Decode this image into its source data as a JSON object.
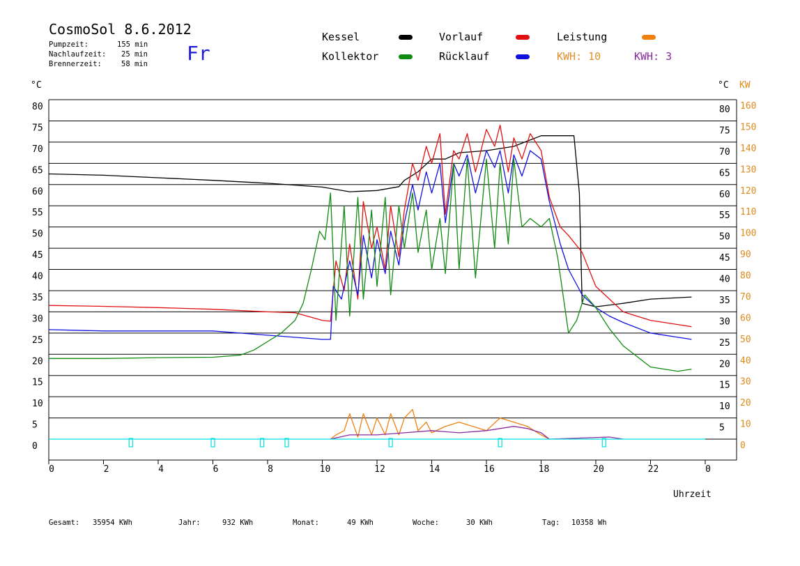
{
  "header": {
    "title": "CosmoSol 8.6.2012",
    "day": "Fr",
    "stats": [
      {
        "label": "Pumpzeit:",
        "value": "155 min"
      },
      {
        "label": "Nachlaufzeit:",
        "value": "25 min"
      },
      {
        "label": "Brennerzeit:",
        "value": "58 min"
      }
    ]
  },
  "legend": {
    "kessel": {
      "label": "Kessel",
      "color": "#000000"
    },
    "vorlauf": {
      "label": "Vorlauf",
      "color": "#e01010"
    },
    "leistung": {
      "label": "Leistung",
      "color": "#f08010"
    },
    "kollektor": {
      "label": "Kollektor",
      "color": "#108a10"
    },
    "ruecklauf": {
      "label": "Rücklauf",
      "color": "#1010e0"
    },
    "kwh1": {
      "label": "KWH: 10",
      "color": "#e0902a"
    },
    "kwh2": {
      "label": "KWH: 3",
      "color": "#8a2aa0"
    }
  },
  "footer": {
    "gesamt": {
      "label": "Gesamt:",
      "value": "35954 KWh"
    },
    "jahr": {
      "label": "Jahr:",
      "value": "932 KWh"
    },
    "monat": {
      "label": "Monat:",
      "value": "49 KWh"
    },
    "woche": {
      "label": "Woche:",
      "value": "30 KWh"
    },
    "tag": {
      "label": "Tag:",
      "value": "10358 Wh"
    }
  },
  "chart_data": {
    "type": "line",
    "xlabel": "Uhrzeit",
    "ylabel_left": "°C",
    "ylabel_right_1": "°C",
    "ylabel_right_2": "KW",
    "xlim": [
      0,
      24
    ],
    "ylim": [
      0,
      80
    ],
    "x_ticks": [
      "0",
      "2",
      "4",
      "6",
      "8",
      "10",
      "12",
      "14",
      "16",
      "18",
      "20",
      "22",
      "0"
    ],
    "y_ticks": [
      "80",
      "75",
      "70",
      "65",
      "60",
      "55",
      "50",
      "45",
      "40",
      "35",
      "30",
      "25",
      "20",
      "15",
      "10",
      "5",
      "0"
    ],
    "y_ticks_right": [
      "80",
      "75",
      "70",
      "65",
      "60",
      "55",
      "50",
      "45",
      "40",
      "35",
      "30",
      "25",
      "20",
      "15",
      "10",
      "5"
    ],
    "y_ticks_kw": [
      "160",
      "150",
      "140",
      "130",
      "120",
      "110",
      "100",
      "90",
      "80",
      "70",
      "60",
      "50",
      "40",
      "30",
      "20",
      "10",
      "0"
    ],
    "grid": "horizontal",
    "series": [
      {
        "name": "Kessel",
        "color": "#000000",
        "points": [
          [
            0,
            62.5
          ],
          [
            2,
            62.2
          ],
          [
            4,
            61.6
          ],
          [
            6,
            61
          ],
          [
            8,
            60.3
          ],
          [
            10,
            59.4
          ],
          [
            11,
            58.3
          ],
          [
            12,
            58.6
          ],
          [
            12.8,
            59.5
          ],
          [
            13,
            61
          ],
          [
            13.5,
            63
          ],
          [
            14,
            66
          ],
          [
            14.5,
            66
          ],
          [
            15,
            67.5
          ],
          [
            16,
            68
          ],
          [
            17,
            69
          ],
          [
            17.8,
            71
          ],
          [
            18,
            71.5
          ],
          [
            19,
            71.5
          ],
          [
            19.2,
            71.5
          ],
          [
            19.4,
            58
          ],
          [
            19.5,
            32
          ],
          [
            20,
            31.2
          ],
          [
            21,
            32
          ],
          [
            22,
            33
          ],
          [
            23.5,
            33.5
          ]
        ]
      },
      {
        "name": "Vorlauf",
        "color": "#e01010",
        "points": [
          [
            0,
            31.5
          ],
          [
            2,
            31.3
          ],
          [
            4,
            31
          ],
          [
            6,
            30.6
          ],
          [
            8,
            30
          ],
          [
            9,
            29.8
          ],
          [
            10,
            28
          ],
          [
            10.3,
            27.8
          ],
          [
            10.5,
            42
          ],
          [
            10.8,
            35
          ],
          [
            11,
            46
          ],
          [
            11.3,
            33
          ],
          [
            11.5,
            56
          ],
          [
            11.8,
            45
          ],
          [
            12,
            50
          ],
          [
            12.3,
            40
          ],
          [
            12.5,
            55
          ],
          [
            12.8,
            43
          ],
          [
            13,
            54
          ],
          [
            13.3,
            65
          ],
          [
            13.5,
            61
          ],
          [
            13.8,
            69
          ],
          [
            14,
            65
          ],
          [
            14.3,
            72
          ],
          [
            14.5,
            53
          ],
          [
            14.8,
            68
          ],
          [
            15,
            66
          ],
          [
            15.3,
            72
          ],
          [
            15.6,
            63
          ],
          [
            16,
            73
          ],
          [
            16.3,
            69
          ],
          [
            16.5,
            74
          ],
          [
            16.8,
            63
          ],
          [
            17,
            71
          ],
          [
            17.3,
            66
          ],
          [
            17.6,
            72
          ],
          [
            18,
            68
          ],
          [
            18.3,
            57
          ],
          [
            18.7,
            50
          ],
          [
            19,
            48
          ],
          [
            19.5,
            44
          ],
          [
            20,
            36
          ],
          [
            20.5,
            33
          ],
          [
            21,
            30
          ],
          [
            22,
            28
          ],
          [
            23,
            27
          ],
          [
            23.5,
            26.5
          ]
        ]
      },
      {
        "name": "Rücklauf",
        "color": "#1010e0",
        "points": [
          [
            0,
            25.8
          ],
          [
            2,
            25.5
          ],
          [
            4,
            25.5
          ],
          [
            6,
            25.5
          ],
          [
            8,
            24.5
          ],
          [
            9,
            24
          ],
          [
            10,
            23.5
          ],
          [
            10.3,
            23.5
          ],
          [
            10.4,
            36
          ],
          [
            10.7,
            33
          ],
          [
            11,
            42
          ],
          [
            11.3,
            34
          ],
          [
            11.5,
            48
          ],
          [
            11.8,
            38
          ],
          [
            12,
            47
          ],
          [
            12.3,
            39
          ],
          [
            12.5,
            49
          ],
          [
            12.8,
            41
          ],
          [
            13,
            51
          ],
          [
            13.3,
            60
          ],
          [
            13.5,
            54
          ],
          [
            13.8,
            63
          ],
          [
            14,
            58
          ],
          [
            14.3,
            65
          ],
          [
            14.5,
            51
          ],
          [
            14.8,
            65
          ],
          [
            15,
            62
          ],
          [
            15.3,
            67
          ],
          [
            15.6,
            58
          ],
          [
            16,
            68
          ],
          [
            16.3,
            64
          ],
          [
            16.5,
            68
          ],
          [
            16.8,
            58
          ],
          [
            17,
            67
          ],
          [
            17.3,
            62
          ],
          [
            17.6,
            68
          ],
          [
            18,
            66
          ],
          [
            18.3,
            56
          ],
          [
            18.7,
            46
          ],
          [
            19,
            40
          ],
          [
            19.5,
            34
          ],
          [
            20,
            31
          ],
          [
            20.5,
            29
          ],
          [
            21,
            27.5
          ],
          [
            22,
            25
          ],
          [
            23,
            24
          ],
          [
            23.5,
            23.5
          ]
        ]
      },
      {
        "name": "Kollektor",
        "color": "#108a10",
        "points": [
          [
            0,
            19
          ],
          [
            2,
            19
          ],
          [
            4,
            19.2
          ],
          [
            6,
            19.3
          ],
          [
            7,
            19.8
          ],
          [
            7.5,
            21
          ],
          [
            8,
            23
          ],
          [
            8.5,
            25
          ],
          [
            9,
            28
          ],
          [
            9.3,
            32
          ],
          [
            9.6,
            40
          ],
          [
            9.9,
            49
          ],
          [
            10.1,
            47
          ],
          [
            10.3,
            58
          ],
          [
            10.5,
            28
          ],
          [
            10.8,
            55
          ],
          [
            11,
            29
          ],
          [
            11.3,
            57
          ],
          [
            11.5,
            33
          ],
          [
            11.8,
            54
          ],
          [
            12,
            36
          ],
          [
            12.3,
            57
          ],
          [
            12.5,
            34
          ],
          [
            12.8,
            55
          ],
          [
            13,
            45
          ],
          [
            13.3,
            58
          ],
          [
            13.5,
            44
          ],
          [
            13.8,
            54
          ],
          [
            14,
            40
          ],
          [
            14.3,
            52
          ],
          [
            14.5,
            39
          ],
          [
            14.8,
            65
          ],
          [
            15,
            40
          ],
          [
            15.3,
            66
          ],
          [
            15.6,
            38
          ],
          [
            16,
            66
          ],
          [
            16.3,
            45
          ],
          [
            16.5,
            65
          ],
          [
            16.8,
            46
          ],
          [
            17,
            66
          ],
          [
            17.3,
            50
          ],
          [
            17.6,
            52
          ],
          [
            18,
            50
          ],
          [
            18.3,
            52
          ],
          [
            18.6,
            43
          ],
          [
            19,
            25
          ],
          [
            19.3,
            28
          ],
          [
            19.6,
            34
          ],
          [
            20,
            31
          ],
          [
            20.5,
            26
          ],
          [
            21,
            22
          ],
          [
            22,
            17
          ],
          [
            23,
            16
          ],
          [
            23.5,
            16.5
          ]
        ]
      },
      {
        "name": "Leistung",
        "color": "#f08010",
        "points": [
          [
            10.3,
            0
          ],
          [
            10.5,
            1
          ],
          [
            10.8,
            2
          ],
          [
            11,
            6
          ],
          [
            11.3,
            0.5
          ],
          [
            11.5,
            6
          ],
          [
            11.8,
            1
          ],
          [
            12,
            5
          ],
          [
            12.3,
            1
          ],
          [
            12.5,
            6
          ],
          [
            12.8,
            1
          ],
          [
            13,
            5
          ],
          [
            13.3,
            7
          ],
          [
            13.5,
            2
          ],
          [
            13.8,
            4
          ],
          [
            14,
            1.5
          ],
          [
            14.5,
            3
          ],
          [
            15,
            4
          ],
          [
            15.5,
            3
          ],
          [
            16,
            2
          ],
          [
            16.5,
            5
          ],
          [
            17,
            4
          ],
          [
            17.5,
            3
          ],
          [
            18,
            1
          ],
          [
            18.3,
            0
          ]
        ]
      },
      {
        "name": "KWH",
        "color": "#8a2aa0",
        "points": [
          [
            10.3,
            0
          ],
          [
            11,
            1
          ],
          [
            12,
            1
          ],
          [
            13,
            1.5
          ],
          [
            14,
            2
          ],
          [
            15,
            1.5
          ],
          [
            16,
            2
          ],
          [
            17,
            3
          ],
          [
            17.5,
            2.5
          ],
          [
            18,
            1.5
          ],
          [
            18.3,
            0
          ],
          [
            20.5,
            0.5
          ],
          [
            21,
            0
          ]
        ]
      },
      {
        "name": "Pumpe",
        "color": "#00e0e0",
        "points": [
          [
            0,
            0
          ],
          [
            3,
            0
          ],
          [
            6,
            0
          ],
          [
            7.8,
            0
          ],
          [
            8.7,
            0
          ],
          [
            12.5,
            0
          ],
          [
            16.5,
            0
          ],
          [
            20.3,
            0
          ],
          [
            24,
            0
          ]
        ]
      }
    ]
  }
}
